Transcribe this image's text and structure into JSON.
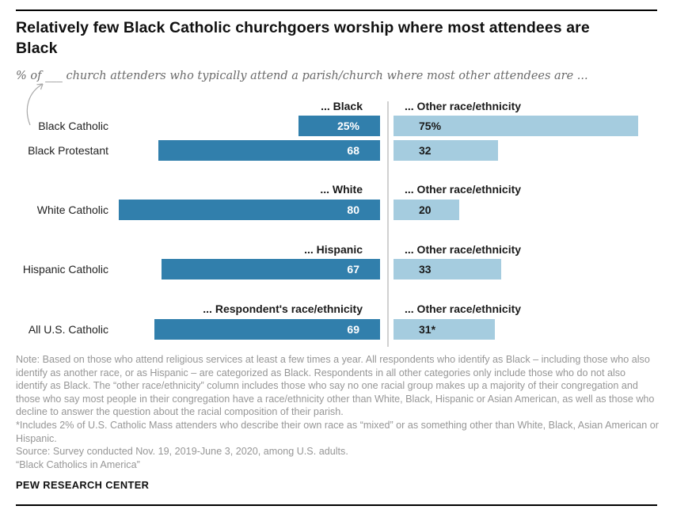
{
  "page": {
    "title": "Relatively few Black Catholic churchgoers worship where most attendees are Black",
    "subtitle": "% of ___ church attenders who typically attend a parish/church where most other attendees are ...",
    "footer_brand": "PEW RESEARCH CENTER"
  },
  "notes": {
    "note": "Note: Based on those who attend religious services at least a few times a year. All respondents who identify as Black – including those who also identify as another race, or as Hispanic – are categorized as Black. Respondents in all other categories only include those who do not also identify as Black. The “other race/ethnicity” column includes those who say no one racial group makes up a majority of their congregation and those who say most people in their congregation have a race/ethnicity other than White, Black, Hispanic or Asian American, as well as those who decline to answer the question about the racial composition of their parish.",
    "asterisk_note": "*Includes 2% of U.S. Catholic Mass attenders who describe their own race as “mixed” or as something other than White, Black, Asian American or Hispanic.",
    "source": "Source: Survey conducted Nov. 19, 2019-June 3, 2020, among U.S. adults.",
    "publication": "“Black Catholics in America”"
  },
  "colors": {
    "dark_bar": "#317fac",
    "light_bar": "#a5ccdf",
    "divider": "#d0d0d0"
  },
  "chart_data": {
    "type": "bar",
    "orientation": "horizontal",
    "unit": "percent",
    "xlim": [
      0,
      100
    ],
    "legend_position": "column-headers",
    "title": "Relatively few Black Catholic churchgoers worship where most attendees are Black",
    "xlabel": "",
    "ylabel": "",
    "grid": false,
    "groups": [
      {
        "left_header": "... Black",
        "right_header": "... Other race/ethnicity",
        "rows": [
          {
            "category": "Black Catholic",
            "left": 25,
            "left_label": "25%",
            "right": 75,
            "right_label": "75%"
          },
          {
            "category": "Black Protestant",
            "left": 68,
            "left_label": "68",
            "right": 32,
            "right_label": "32"
          }
        ]
      },
      {
        "left_header": "... White",
        "right_header": "... Other race/ethnicity",
        "rows": [
          {
            "category": "White Catholic",
            "left": 80,
            "left_label": "80",
            "right": 20,
            "right_label": "20"
          }
        ]
      },
      {
        "left_header": "... Hispanic",
        "right_header": "... Other race/ethnicity",
        "rows": [
          {
            "category": "Hispanic Catholic",
            "left": 67,
            "left_label": "67",
            "right": 33,
            "right_label": "33"
          }
        ]
      },
      {
        "left_header": "... Respondent's race/ethnicity",
        "right_header": "... Other race/ethnicity",
        "rows": [
          {
            "category": "All U.S. Catholic",
            "left": 69,
            "left_label": "69",
            "right": 31,
            "right_label": "31*"
          }
        ]
      }
    ]
  }
}
